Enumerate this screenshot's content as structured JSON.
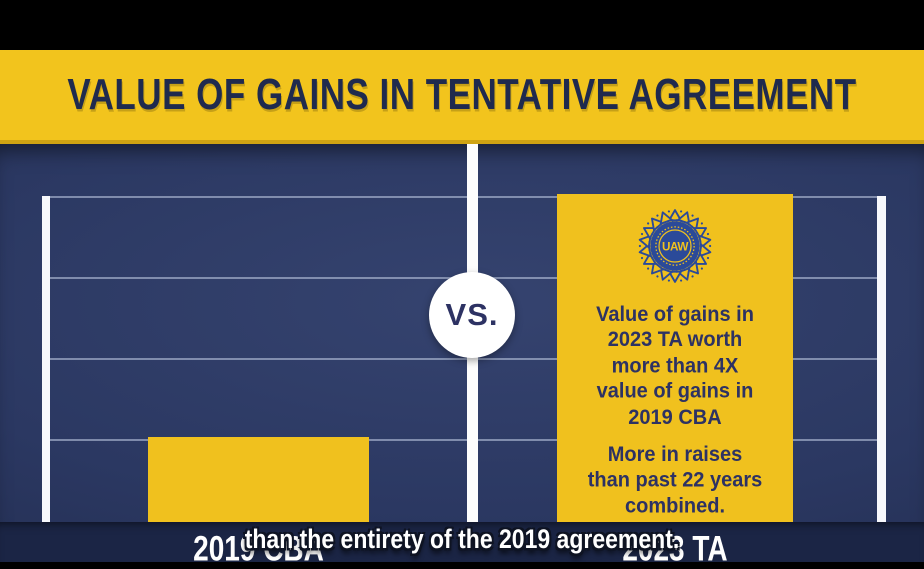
{
  "header": {
    "title": "VALUE OF GAINS IN TENTATIVE AGREEMENT"
  },
  "versus": {
    "label": "VS."
  },
  "logo": {
    "text": "UAW"
  },
  "bars": {
    "right_annotation_1": "Value of gains in\n2023 TA worth\nmore than 4X\nvalue of gains in\n2019 CBA",
    "right_annotation_2": "More in raises\nthan past 22 years\ncombined."
  },
  "x_labels": {
    "left": "2019 CBA",
    "right": "2023 TA"
  },
  "caption": "than the entirety of the 2019 agreement.",
  "colors": {
    "gold": "#f0c11e",
    "gold_dark": "#cfa313",
    "banner_text_navy": "#1f2a4e",
    "annotation_navy": "#2d3263",
    "chart_background_navy": "#2b3862",
    "bottom_strip_navy": "#1b2545",
    "logo_blue": "#2b4a99",
    "gridline": "#c5cfe8",
    "axis_white": "#f7f8fc"
  },
  "chart_data": {
    "type": "bar",
    "title": "VALUE OF GAINS IN TENTATIVE AGREEMENT",
    "categories": [
      "2019 CBA",
      "2023 TA"
    ],
    "values": [
      1.05,
      4.05
    ],
    "value_scale": "relative units estimated from gridlines (2019 CBA ≈ 1 unit; no numeric axis labels shown)",
    "xlabel": "",
    "ylabel": "",
    "ylim": [
      0,
      4.67
    ],
    "gridline_units": [
      1,
      2,
      3,
      4
    ],
    "grid": "horizontal gridlines on",
    "legend": "none",
    "bar_color": "#f0c11e",
    "annotations": [
      "VS.",
      "Value of gains in 2023 TA worth more than 4X value of gains in 2019 CBA",
      "More in raises than past 22 years combined."
    ]
  }
}
